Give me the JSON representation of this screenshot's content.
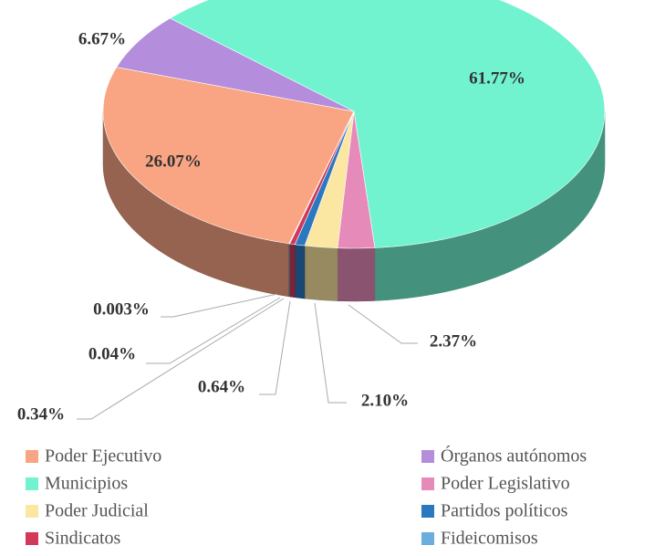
{
  "chart_data": {
    "type": "pie3d",
    "categories": [
      "Poder Ejecutivo",
      "Órganos autónomos",
      "Municipios",
      "Poder Legislativo",
      "Poder Judicial",
      "Partidos políticos",
      "Sindicatos",
      "Fideicomisos",
      null
    ],
    "values": [
      26.07,
      6.67,
      61.77,
      2.37,
      2.1,
      0.64,
      0.34,
      0.04,
      0.003
    ],
    "value_labels": [
      "26.07%",
      "6.67%",
      "61.77%",
      "2.37%",
      "2.10%",
      "0.64%",
      "0.34%",
      "0.04%",
      "0.003%"
    ],
    "colors": [
      "#f9a584",
      "#b48ddc",
      "#72f3d0",
      "#e68aba",
      "#fbe6a2",
      "#2b78c0",
      "#d2385a",
      "#6aaee0",
      "#8a8a8a"
    ],
    "legend": "bottom"
  }
}
